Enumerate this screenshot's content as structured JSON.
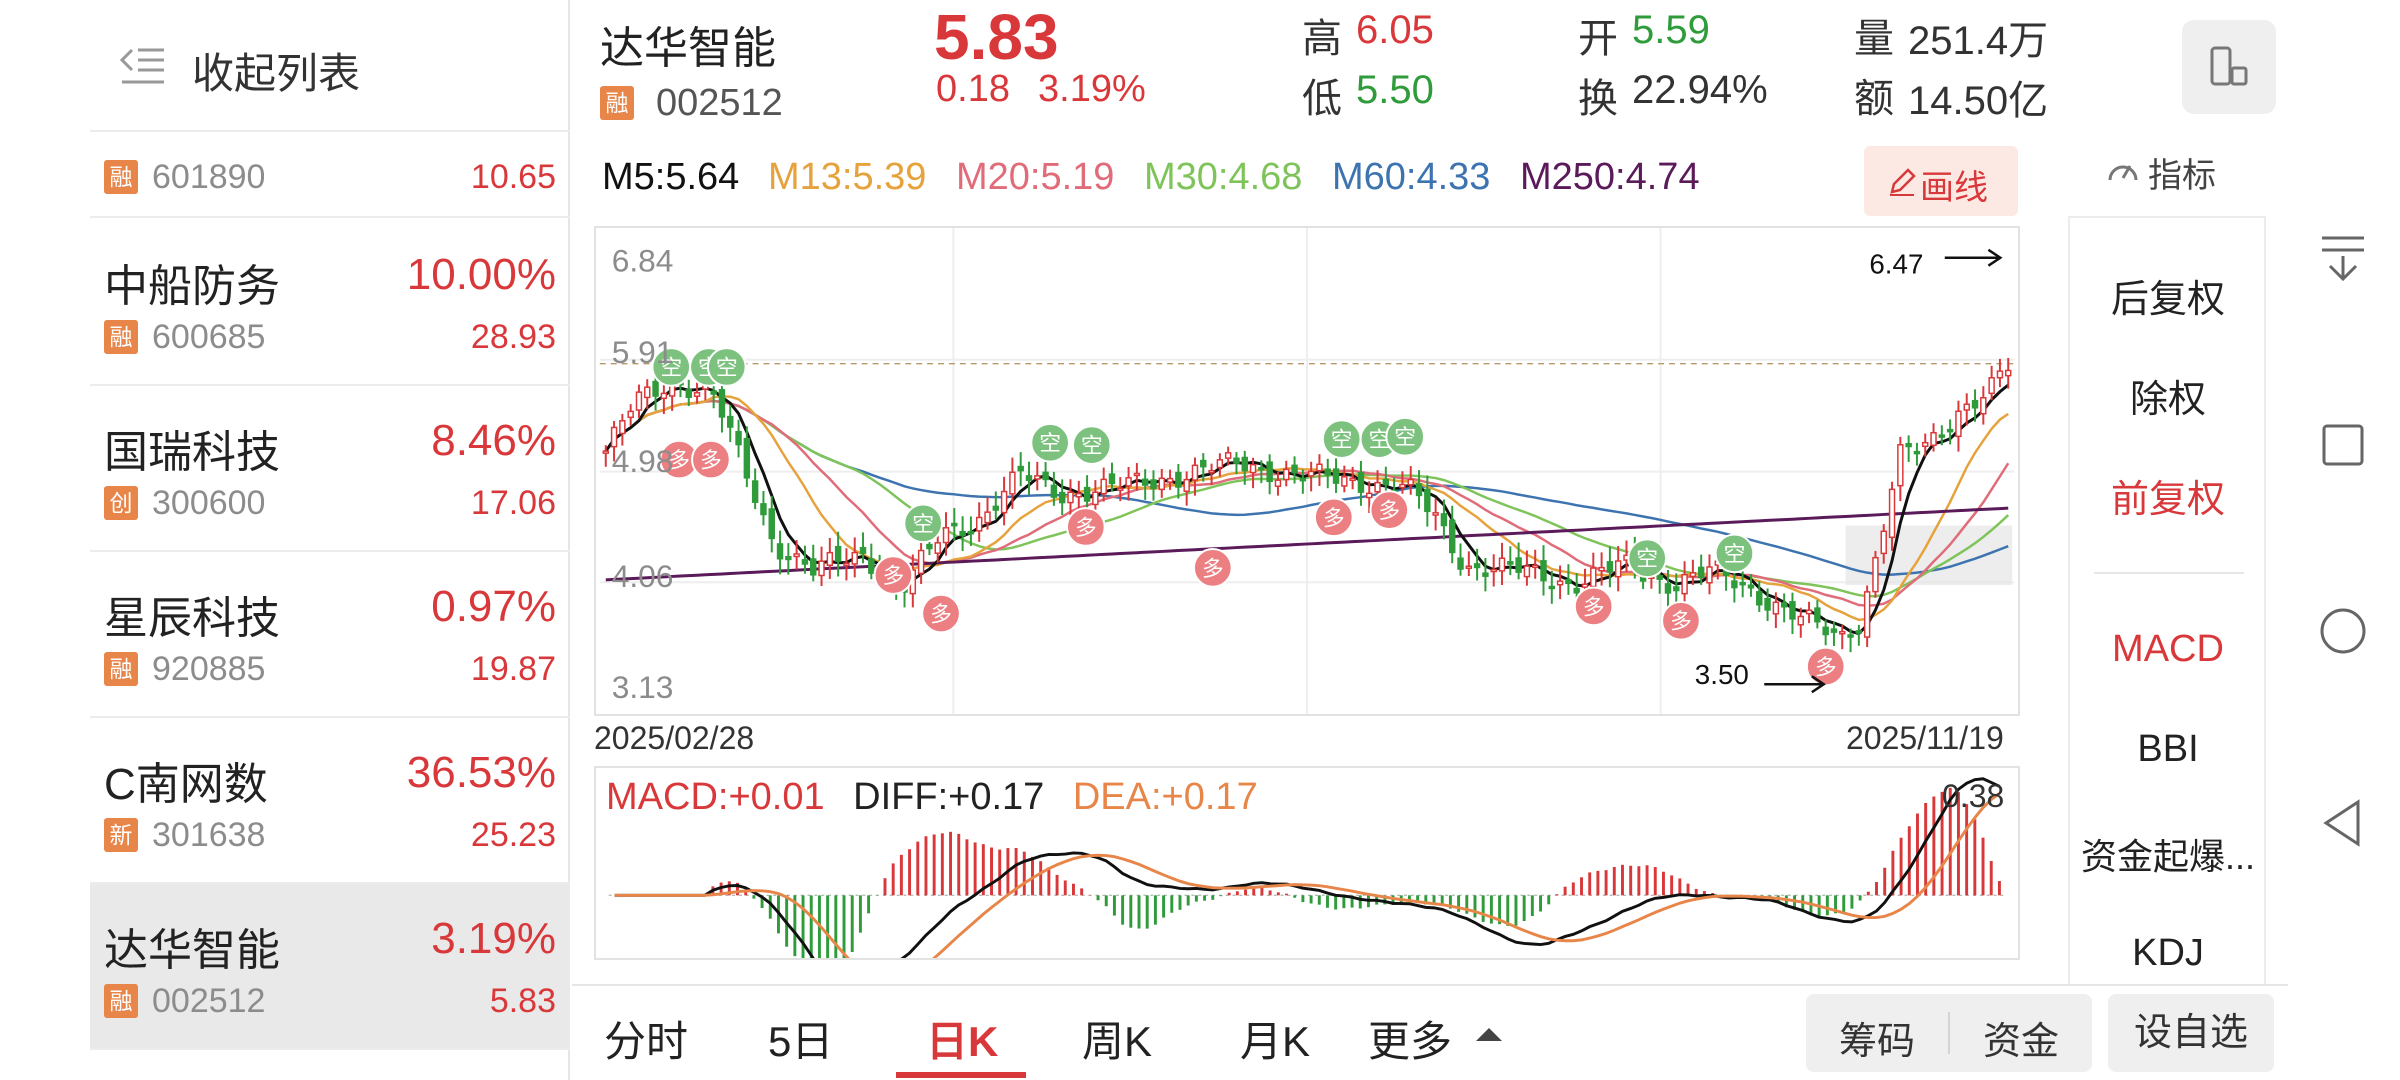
{
  "sidebar": {
    "collapse_label": "收起列表",
    "stocks": [
      {
        "tag": "融",
        "code": "601890",
        "price": "10.65"
      },
      {
        "name": "中船防务",
        "pct": "10.00%",
        "tag": "融",
        "code": "600685",
        "price": "28.93"
      },
      {
        "name": "国瑞科技",
        "pct": "8.46%",
        "tag": "创",
        "code": "300600",
        "price": "17.06"
      },
      {
        "name": "星辰科技",
        "pct": "0.97%",
        "tag": "融",
        "code": "920885",
        "price": "19.87"
      },
      {
        "name": "C南网数",
        "pct": "36.53%",
        "tag": "新",
        "code": "301638",
        "price": "25.23"
      },
      {
        "name": "达华智能",
        "pct": "3.19%",
        "tag": "融",
        "code": "002512",
        "price": "5.83"
      }
    ]
  },
  "header": {
    "name": "达华智能",
    "tag": "融",
    "code": "002512",
    "price": "5.83",
    "change": "0.18",
    "change_pct": "3.19%",
    "high_label": "高",
    "high": "6.05",
    "low_label": "低",
    "low": "5.50",
    "open_label": "开",
    "open": "5.59",
    "turnover_label": "换",
    "turnover": "22.94%",
    "volume_label": "量",
    "volume": "251.4万",
    "amount_label": "额",
    "amount": "14.50亿"
  },
  "ma_row": {
    "m5": "M5:5.64",
    "m13": "M13:5.39",
    "m20": "M20:5.19",
    "m30": "M30:4.68",
    "m60": "M60:4.33",
    "m250": "M250:4.74",
    "draw_label": "画线",
    "indicator_label": "指标"
  },
  "colors": {
    "up": "#d9383a",
    "down": "#2f9b3b",
    "m5": "#111111",
    "m13": "#e6a23c",
    "m20": "#e06c7a",
    "m30": "#7fc45a",
    "m60": "#3d74b0",
    "m250": "#5b1a5a"
  },
  "kline": {
    "y_labels": [
      "6.84",
      "5.91",
      "4.98",
      "4.06",
      "3.13"
    ],
    "max_label": "6.47",
    "min_label": "3.50",
    "start_date": "2025/02/28",
    "end_date": "2025/11/19",
    "buy_marker": "多",
    "sell_marker": "空"
  },
  "macd": {
    "macd_label": "MACD:+0.01",
    "diff_label": "DIFF:+0.17",
    "dea_label": "DEA:+0.17",
    "max_label": "0.38"
  },
  "options": {
    "fq": [
      "后复权",
      "除权",
      "前复权"
    ],
    "fq_active": "前复权",
    "indicators": [
      "MACD",
      "BBI",
      "资金起爆...",
      "KDJ"
    ],
    "indicator_active": "MACD"
  },
  "tabs": {
    "items": [
      "分时",
      "5日",
      "日K",
      "周K",
      "月K",
      "更多"
    ],
    "active": "日K",
    "chips_label": "筹码",
    "funds_label": "资金",
    "fav_label": "设自选"
  }
}
